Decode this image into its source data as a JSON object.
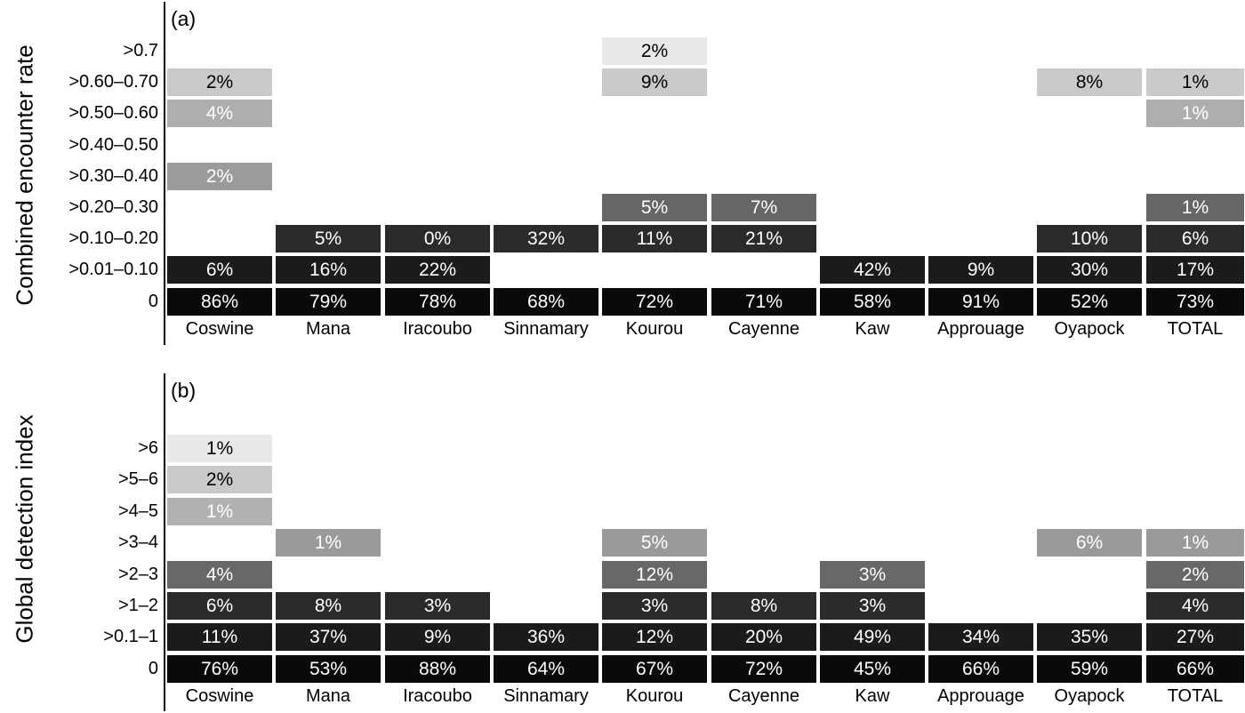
{
  "value_suffix": "%",
  "chart_data": [
    {
      "type": "heatmap",
      "panel_tag": "(a)",
      "ylabel": "Combined encounter rate",
      "legend_position": "none",
      "grid": false,
      "categories": [
        "Coswine",
        "Mana",
        "Iracoubo",
        "Sinnamary",
        "Kourou",
        "Cayenne",
        "Kaw",
        "Approuage",
        "Oyapock",
        "TOTAL"
      ],
      "rows": [
        {
          "bin": ">0.7",
          "color": "#e8e8e8",
          "text_color": "#000000",
          "values": [
            null,
            null,
            null,
            null,
            2,
            null,
            null,
            null,
            null,
            null
          ]
        },
        {
          "bin": ">0.60–0.70",
          "color": "#cacaca",
          "text_color": "#000000",
          "values": [
            2,
            null,
            null,
            null,
            9,
            null,
            null,
            null,
            8,
            1
          ]
        },
        {
          "bin": ">0.50–0.60",
          "color": "#aeaeae",
          "text_color": "#ffffff",
          "values": [
            4,
            null,
            null,
            null,
            null,
            null,
            null,
            null,
            null,
            1
          ]
        },
        {
          "bin": ">0.40–0.50",
          "color": "#9b9b9b",
          "text_color": "#ffffff",
          "values": [
            null,
            null,
            null,
            null,
            null,
            null,
            null,
            null,
            null,
            null
          ]
        },
        {
          "bin": ">0.30–0.40",
          "color": "#9b9b9b",
          "text_color": "#ffffff",
          "values": [
            2,
            null,
            null,
            null,
            null,
            null,
            null,
            null,
            null,
            null
          ]
        },
        {
          "bin": ">0.20–0.30",
          "color": "#666666",
          "text_color": "#ffffff",
          "values": [
            null,
            null,
            null,
            null,
            5,
            7,
            null,
            null,
            null,
            1
          ]
        },
        {
          "bin": ">0.10–0.20",
          "color": "#2b2b2b",
          "text_color": "#ffffff",
          "values": [
            null,
            5,
            0,
            32,
            11,
            21,
            null,
            null,
            10,
            6
          ]
        },
        {
          "bin": ">0.01–0.10",
          "color": "#1b1b1b",
          "text_color": "#ffffff",
          "values": [
            6,
            16,
            22,
            null,
            null,
            null,
            42,
            9,
            30,
            17
          ]
        },
        {
          "bin": "0",
          "color": "#0a0a0a",
          "text_color": "#ffffff",
          "values": [
            86,
            79,
            78,
            68,
            72,
            71,
            58,
            91,
            52,
            73
          ]
        }
      ]
    },
    {
      "type": "heatmap",
      "panel_tag": "(b)",
      "ylabel": "Global detection index",
      "legend_position": "none",
      "grid": false,
      "categories": [
        "Coswine",
        "Mana",
        "Iracoubo",
        "Sinnamary",
        "Kourou",
        "Cayenne",
        "Kaw",
        "Approuage",
        "Oyapock",
        "TOTAL"
      ],
      "rows": [
        {
          "bin": ">6",
          "color": "#e9e9e9",
          "text_color": "#000000",
          "values": [
            1,
            null,
            null,
            null,
            null,
            null,
            null,
            null,
            null,
            null
          ]
        },
        {
          "bin": ">5–6",
          "color": "#cacaca",
          "text_color": "#000000",
          "values": [
            2,
            null,
            null,
            null,
            null,
            null,
            null,
            null,
            null,
            null
          ]
        },
        {
          "bin": ">4–5",
          "color": "#b1b1b1",
          "text_color": "#ffffff",
          "values": [
            1,
            null,
            null,
            null,
            null,
            null,
            null,
            null,
            null,
            null
          ]
        },
        {
          "bin": ">3–4",
          "color": "#9a9a9a",
          "text_color": "#ffffff",
          "values": [
            null,
            1,
            null,
            null,
            5,
            null,
            null,
            null,
            6,
            1
          ]
        },
        {
          "bin": ">2–3",
          "color": "#686868",
          "text_color": "#ffffff",
          "values": [
            4,
            null,
            null,
            null,
            12,
            null,
            3,
            null,
            null,
            2
          ]
        },
        {
          "bin": ">1–2",
          "color": "#2b2b2b",
          "text_color": "#ffffff",
          "values": [
            6,
            8,
            3,
            null,
            3,
            8,
            3,
            null,
            null,
            4
          ]
        },
        {
          "bin": ">0.1–1",
          "color": "#1b1b1b",
          "text_color": "#ffffff",
          "values": [
            11,
            37,
            9,
            36,
            12,
            20,
            49,
            34,
            35,
            27
          ]
        },
        {
          "bin": "0",
          "color": "#0a0a0a",
          "text_color": "#ffffff",
          "values": [
            76,
            53,
            88,
            64,
            67,
            72,
            45,
            66,
            59,
            66
          ]
        }
      ]
    }
  ]
}
